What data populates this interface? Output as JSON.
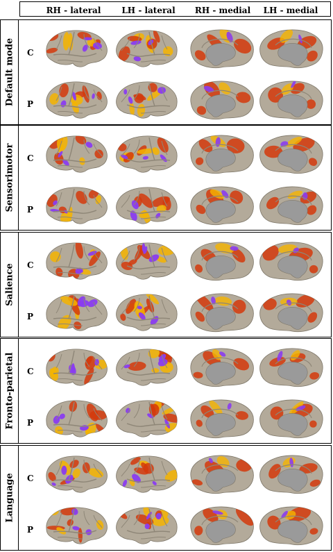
{
  "columns": [
    "RH - lateral",
    "LH - lateral",
    "RH - medial",
    "LH - medial"
  ],
  "colors": {
    "cortex": "#b3aa9a",
    "cortex_shadow": "#8e8677",
    "medial_wall": "#9a9a9a",
    "positive_low": "#d43a0c",
    "positive_high": "#f5b400",
    "negative": "#8a3cf0"
  },
  "networks": [
    {
      "name": "Default mode",
      "rows": [
        {
          "label": "C"
        },
        {
          "label": "P"
        }
      ]
    },
    {
      "name": "Sensorimotor",
      "rows": [
        {
          "label": "C"
        },
        {
          "label": "P"
        }
      ]
    },
    {
      "name": "Salience",
      "rows": [
        {
          "label": "C"
        },
        {
          "label": "P"
        }
      ]
    },
    {
      "name": "Fronto-parietal",
      "rows": [
        {
          "label": "C"
        },
        {
          "label": "P"
        }
      ]
    },
    {
      "name": "Language",
      "rows": [
        {
          "label": "C"
        },
        {
          "label": "P"
        }
      ]
    }
  ]
}
